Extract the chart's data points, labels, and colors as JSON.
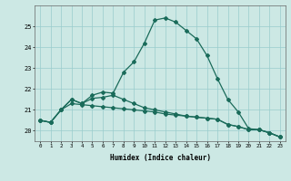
{
  "xlabel": "Humidex (Indice chaleur)",
  "ylabel": "",
  "bg_color": "#cce8e4",
  "line_color": "#1a6b5a",
  "grid_color": "#99cccc",
  "x": [
    0,
    1,
    2,
    3,
    4,
    5,
    6,
    7,
    8,
    9,
    10,
    11,
    12,
    13,
    14,
    15,
    16,
    17,
    18,
    19,
    20,
    21,
    22,
    23
  ],
  "line1": [
    20.5,
    20.4,
    21.0,
    21.5,
    21.3,
    21.7,
    21.85,
    21.8,
    22.8,
    23.3,
    24.2,
    25.3,
    25.4,
    25.2,
    24.8,
    24.4,
    23.6,
    22.5,
    21.5,
    20.9,
    20.1,
    20.05,
    19.9,
    19.7
  ],
  "line2": [
    20.5,
    20.4,
    21.0,
    21.5,
    21.3,
    21.55,
    21.6,
    21.7,
    21.5,
    21.3,
    21.1,
    21.0,
    20.9,
    20.8,
    20.7,
    20.65,
    20.6,
    20.55,
    20.3,
    20.2,
    20.05,
    20.05,
    19.9,
    19.7
  ],
  "line3": [
    20.5,
    20.4,
    21.0,
    21.3,
    21.25,
    21.2,
    21.15,
    21.1,
    21.05,
    21.0,
    20.95,
    20.9,
    20.8,
    20.75,
    20.7,
    20.65,
    20.6,
    20.55,
    20.3,
    20.2,
    20.05,
    20.05,
    19.9,
    19.7
  ],
  "ylim": [
    19.5,
    26.0
  ],
  "yticks": [
    20,
    21,
    22,
    23,
    24,
    25
  ],
  "xticks": [
    0,
    1,
    2,
    3,
    4,
    5,
    6,
    7,
    8,
    9,
    10,
    11,
    12,
    13,
    14,
    15,
    16,
    17,
    18,
    19,
    20,
    21,
    22,
    23
  ]
}
